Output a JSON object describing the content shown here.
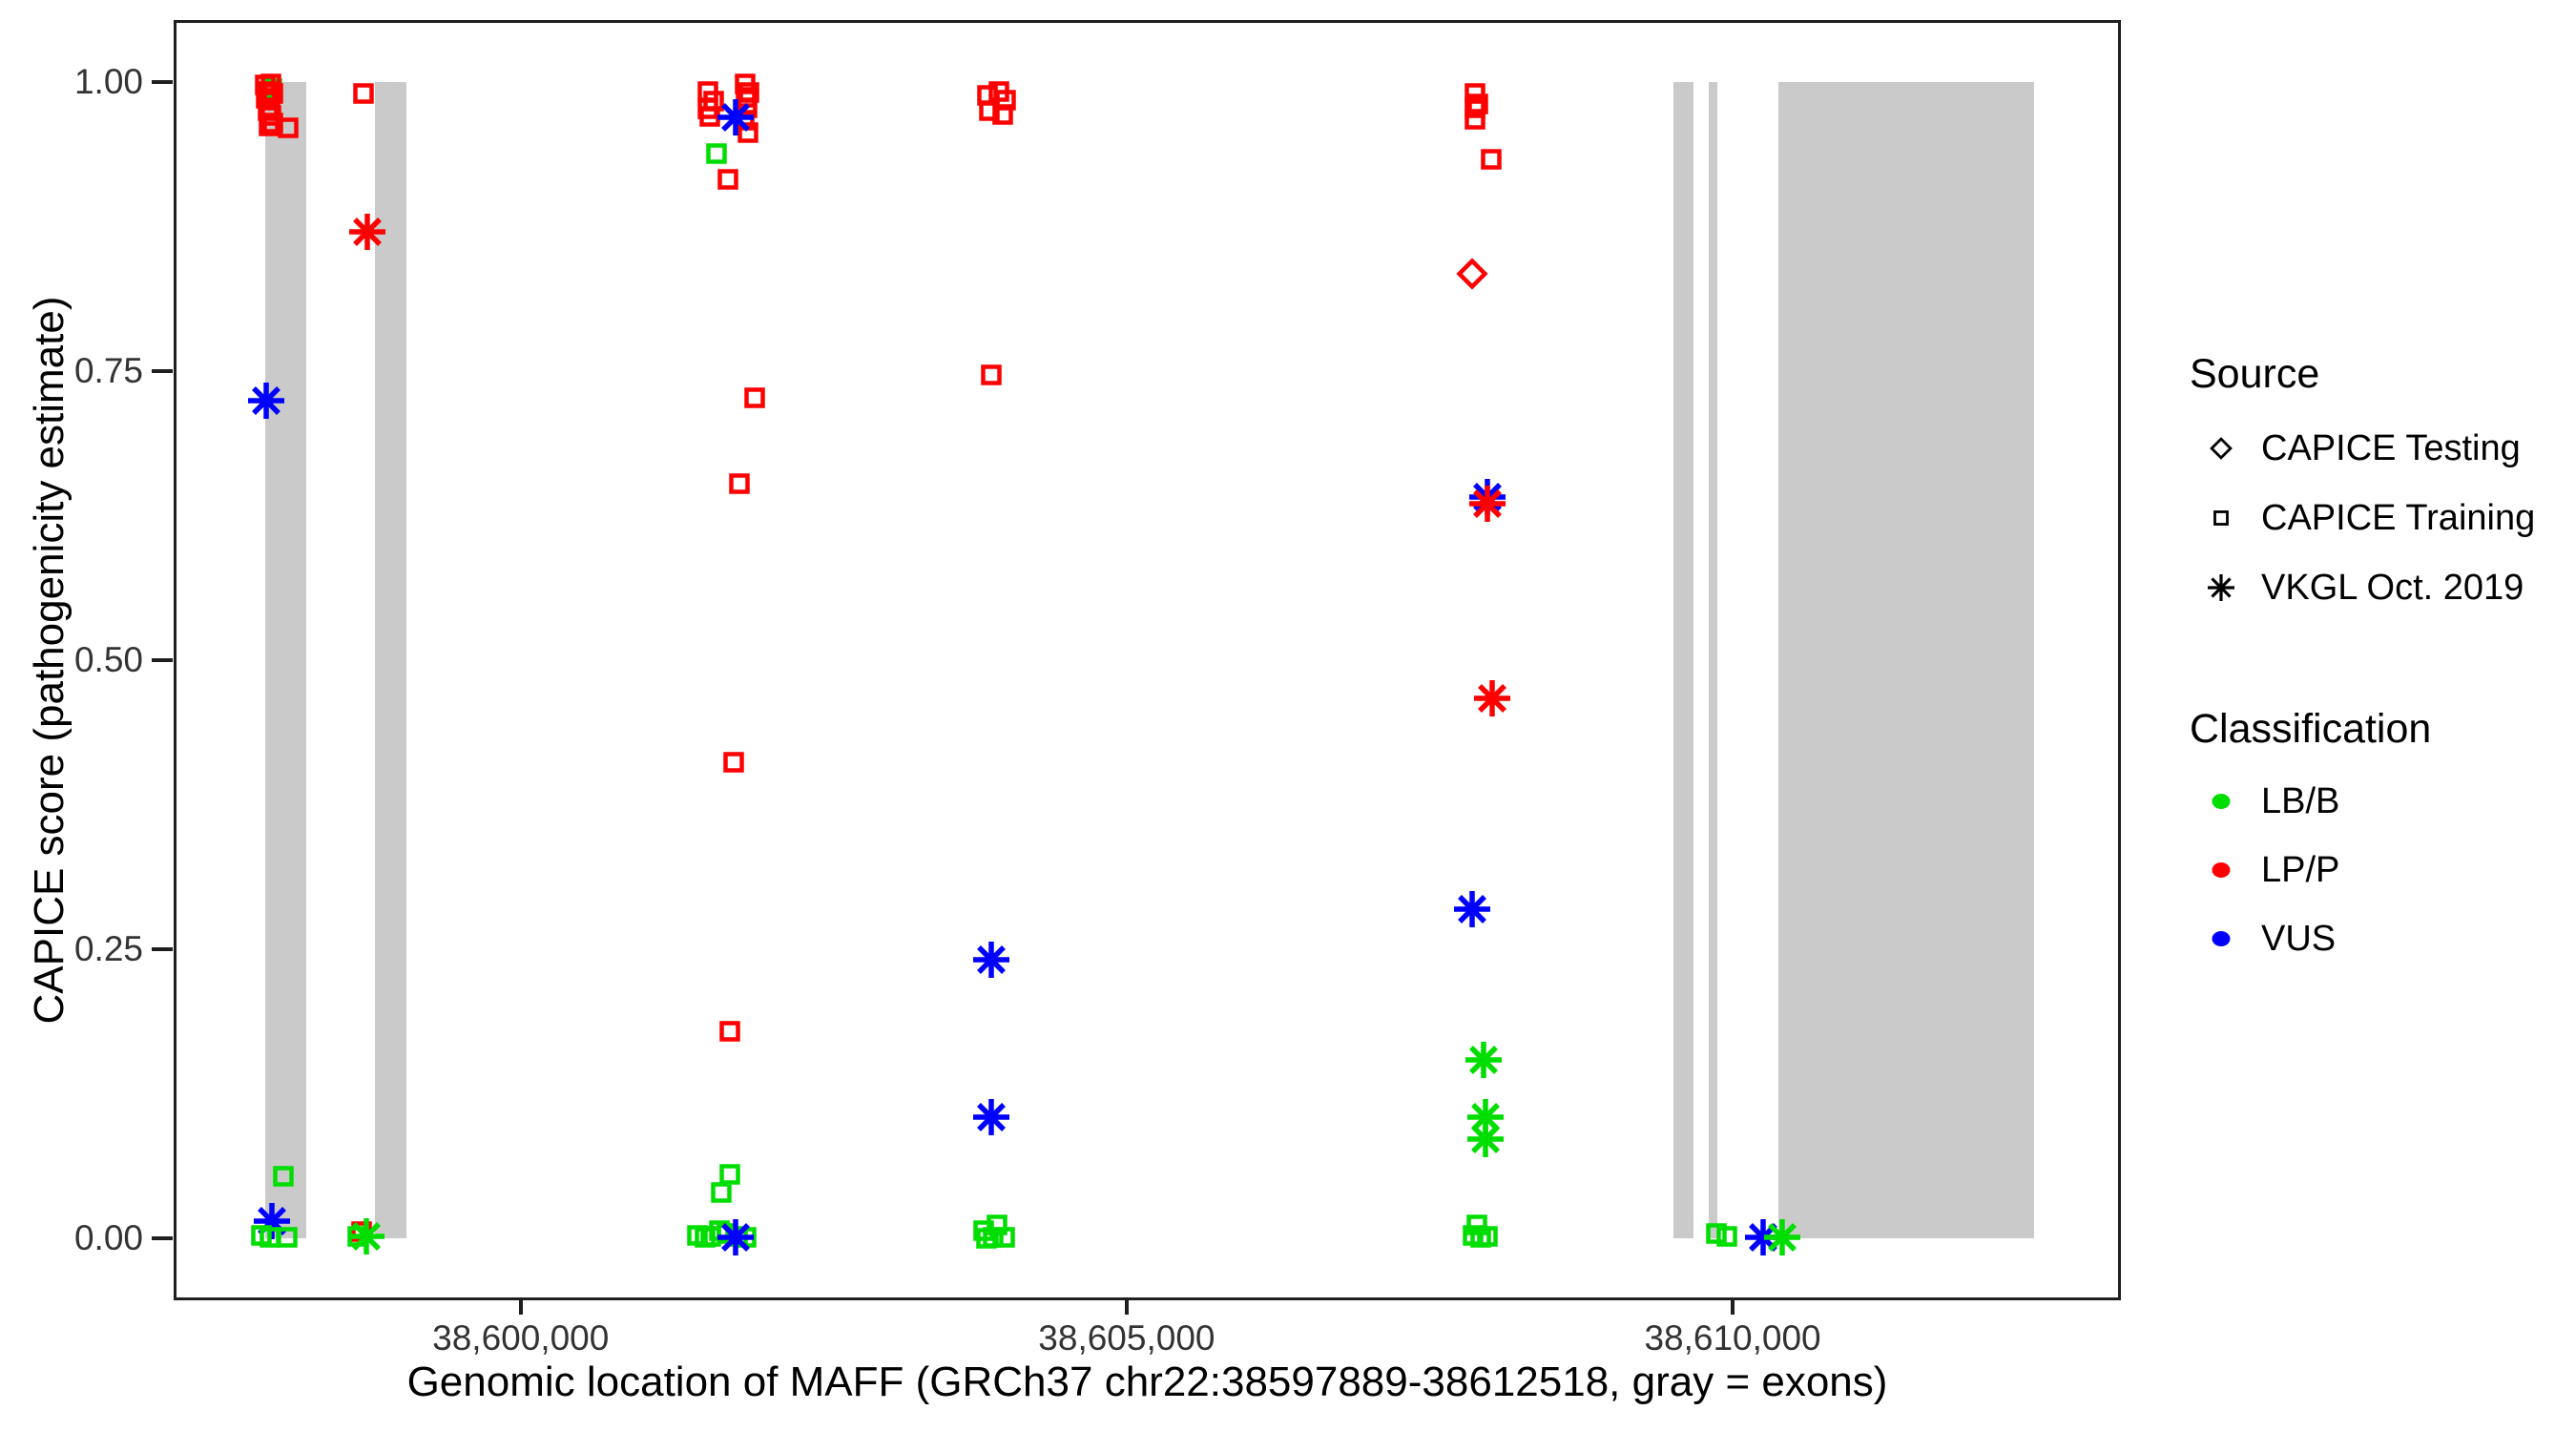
{
  "figure": {
    "x_axis_title": "Genomic location of MAFF (GRCh37 chr22:38597889-38612518, gray = exons)",
    "y_axis_title": "CAPICE score (pathogenicity estimate)"
  },
  "legend": {
    "source": {
      "title": "Source",
      "items": [
        {
          "label": "CAPICE Testing",
          "marker": "diamond-icon"
        },
        {
          "label": "CAPICE Training",
          "marker": "square-icon"
        },
        {
          "label": "VKGL Oct. 2019",
          "marker": "asterisk-icon"
        }
      ]
    },
    "classification": {
      "title": "Classification",
      "items": [
        {
          "label": "LB/B",
          "color": "#00DD00"
        },
        {
          "label": "LP/P",
          "color": "#FF0000"
        },
        {
          "label": "VUS",
          "color": "#0000FF"
        }
      ]
    }
  },
  "colors": {
    "LB/B": "#00DD00",
    "LP/P": "#FF0000",
    "VUS": "#0000FF",
    "exon": "#CACACA",
    "axis": "#1f1f1f",
    "tick_text": "#333333"
  },
  "chart_data": {
    "type": "scatter",
    "title": "",
    "xlabel": "Genomic location of MAFF (GRCh37 chr22:38597889-38612518, gray = exons)",
    "ylabel": "CAPICE score (pathogenicity estimate)",
    "x_range": [
      38597160,
      38613180
    ],
    "y_range": [
      -0.051,
      1.051
    ],
    "x_ticks": [
      {
        "value": 38600000,
        "label": "38,600,000"
      },
      {
        "value": 38605000,
        "label": "38,605,000"
      },
      {
        "value": 38610000,
        "label": "38,610,000"
      }
    ],
    "y_ticks": [
      {
        "value": 0.0,
        "label": "0.00"
      },
      {
        "value": 0.25,
        "label": "0.25"
      },
      {
        "value": 0.5,
        "label": "0.50"
      },
      {
        "value": 0.75,
        "label": "0.75"
      },
      {
        "value": 1.0,
        "label": "1.00"
      }
    ],
    "exons": [
      {
        "start": 38597890,
        "end": 38598230
      },
      {
        "start": 38598795,
        "end": 38599055
      },
      {
        "start": 38609510,
        "end": 38609680
      },
      {
        "start": 38609800,
        "end": 38609875
      },
      {
        "start": 38610375,
        "end": 38612490
      }
    ],
    "exon_y_span": [
      0.0,
      1.0
    ],
    "point_fields": [
      "genomic_position",
      "capice_score",
      "source",
      "classification"
    ],
    "points": [
      [
        38597950,
        0.994,
        "training",
        "LB/B"
      ],
      [
        38597893,
        0.997,
        "training",
        "LP/P"
      ],
      [
        38597918,
        0.992,
        "training",
        "LP/P"
      ],
      [
        38597943,
        0.998,
        "training",
        "LP/P"
      ],
      [
        38597903,
        0.986,
        "training",
        "LP/P"
      ],
      [
        38597933,
        0.984,
        "training",
        "LP/P"
      ],
      [
        38597958,
        0.99,
        "training",
        "LP/P"
      ],
      [
        38597913,
        0.975,
        "training",
        "LP/P"
      ],
      [
        38597943,
        0.971,
        "training",
        "LP/P"
      ],
      [
        38597923,
        0.962,
        "training",
        "LP/P"
      ],
      [
        38597953,
        0.964,
        "training",
        "LP/P"
      ],
      [
        38598078,
        0.96,
        "training",
        "LP/P"
      ],
      [
        38598700,
        0.99,
        "training",
        "LP/P"
      ],
      [
        38598735,
        0.87,
        "vkgl",
        "LP/P"
      ],
      [
        38597900,
        0.724,
        "vkgl",
        "VUS"
      ],
      [
        38598045,
        0.054,
        "training",
        "LB/B"
      ],
      [
        38597945,
        0.015,
        "vkgl",
        "VUS"
      ],
      [
        38597862,
        0.003,
        "training",
        "LB/B"
      ],
      [
        38597930,
        0.001,
        "training",
        "LB/B"
      ],
      [
        38598072,
        0.001,
        "training",
        "LB/B"
      ],
      [
        38598690,
        0.006,
        "training",
        "LP/P"
      ],
      [
        38598657,
        0.002,
        "training",
        "LB/B"
      ],
      [
        38598727,
        0.002,
        "vkgl",
        "LB/B"
      ],
      [
        38601542,
        0.992,
        "training",
        "LP/P"
      ],
      [
        38601590,
        0.983,
        "training",
        "LP/P"
      ],
      [
        38601547,
        0.977,
        "training",
        "LP/P"
      ],
      [
        38601562,
        0.97,
        "training",
        "LP/P"
      ],
      [
        38601855,
        0.998,
        "training",
        "LP/P"
      ],
      [
        38601887,
        0.991,
        "training",
        "LP/P"
      ],
      [
        38601858,
        0.987,
        "training",
        "LP/P"
      ],
      [
        38601867,
        0.978,
        "training",
        "LP/P"
      ],
      [
        38601847,
        0.967,
        "training",
        "LP/P"
      ],
      [
        38601872,
        0.956,
        "training",
        "LP/P"
      ],
      [
        38601770,
        0.969,
        "vkgl",
        "VUS"
      ],
      [
        38601617,
        0.938,
        "training",
        "LB/B"
      ],
      [
        38601712,
        0.916,
        "training",
        "LP/P"
      ],
      [
        38601930,
        0.727,
        "training",
        "LP/P"
      ],
      [
        38601805,
        0.653,
        "training",
        "LP/P"
      ],
      [
        38601760,
        0.412,
        "training",
        "LP/P"
      ],
      [
        38601727,
        0.179,
        "training",
        "LP/P"
      ],
      [
        38601727,
        0.055,
        "training",
        "LB/B"
      ],
      [
        38601657,
        0.04,
        "training",
        "LB/B"
      ],
      [
        38601460,
        0.003,
        "training",
        "LB/B"
      ],
      [
        38601520,
        0.001,
        "training",
        "LB/B"
      ],
      [
        38601572,
        0.002,
        "training",
        "LB/B"
      ],
      [
        38601642,
        0.007,
        "training",
        "LB/B"
      ],
      [
        38601702,
        0.004,
        "training",
        "LB/B"
      ],
      [
        38601792,
        0.002,
        "training",
        "LB/B"
      ],
      [
        38601862,
        0.001,
        "training",
        "LB/B"
      ],
      [
        38601777,
        0.001,
        "vkgl",
        "VUS"
      ],
      [
        38603852,
        0.988,
        "training",
        "LP/P"
      ],
      [
        38603947,
        0.992,
        "training",
        "LP/P"
      ],
      [
        38604002,
        0.984,
        "training",
        "LP/P"
      ],
      [
        38603867,
        0.975,
        "training",
        "LP/P"
      ],
      [
        38603977,
        0.972,
        "training",
        "LP/P"
      ],
      [
        38603882,
        0.747,
        "training",
        "LP/P"
      ],
      [
        38603882,
        0.241,
        "vkgl",
        "VUS"
      ],
      [
        38603882,
        0.105,
        "vkgl",
        "VUS"
      ],
      [
        38603822,
        0.007,
        "training",
        "LB/B"
      ],
      [
        38603927,
        0.012,
        "training",
        "LB/B"
      ],
      [
        38603902,
        0.001,
        "training",
        "LB/B"
      ],
      [
        38603997,
        0.001,
        "training",
        "LB/B"
      ],
      [
        38603847,
        0.0,
        "training",
        "LB/B"
      ],
      [
        38607877,
        0.99,
        "training",
        "LP/P"
      ],
      [
        38607897,
        0.981,
        "training",
        "LP/P"
      ],
      [
        38607877,
        0.978,
        "training",
        "LP/P"
      ],
      [
        38607877,
        0.968,
        "training",
        "LP/P"
      ],
      [
        38608010,
        0.933,
        "training",
        "LP/P"
      ],
      [
        38607852,
        0.834,
        "testing",
        "LP/P"
      ],
      [
        38607977,
        0.641,
        "vkgl",
        "VUS"
      ],
      [
        38607977,
        0.635,
        "vkgl",
        "LP/P"
      ],
      [
        38608012,
        0.467,
        "vkgl",
        "LP/P"
      ],
      [
        38607852,
        0.285,
        "vkgl",
        "VUS"
      ],
      [
        38607947,
        0.154,
        "vkgl",
        "LB/B"
      ],
      [
        38607962,
        0.105,
        "vkgl",
        "LB/B"
      ],
      [
        38607962,
        0.086,
        "vkgl",
        "LB/B"
      ],
      [
        38607892,
        0.012,
        "training",
        "LB/B"
      ],
      [
        38607857,
        0.003,
        "training",
        "LB/B"
      ],
      [
        38607922,
        0.001,
        "training",
        "LB/B"
      ],
      [
        38607977,
        0.002,
        "training",
        "LB/B"
      ],
      [
        38609867,
        0.004,
        "training",
        "LB/B"
      ],
      [
        38609952,
        0.002,
        "training",
        "LB/B"
      ],
      [
        38610252,
        0.001,
        "vkgl",
        "VUS"
      ],
      [
        38610412,
        0.001,
        "vkgl",
        "LB/B"
      ]
    ]
  }
}
